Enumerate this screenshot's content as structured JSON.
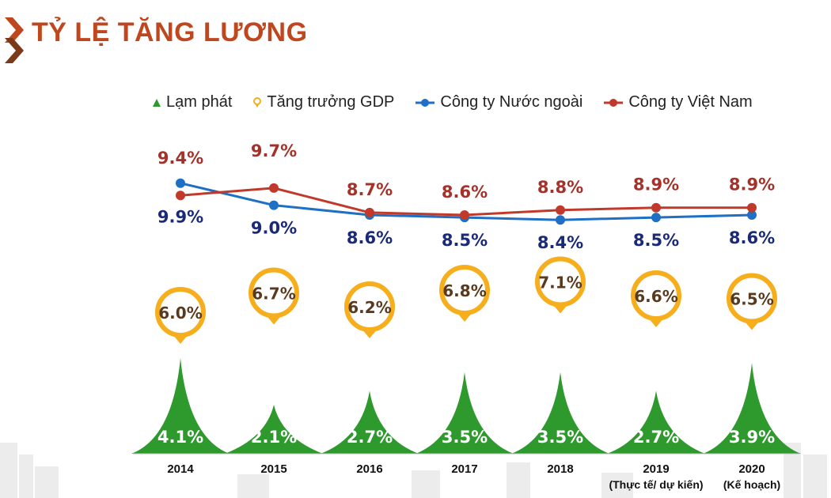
{
  "title": "TỶ LỆ TĂNG LƯƠNG",
  "legend": {
    "inflation": "Lạm phát",
    "gdp": "Tăng trưởng GDP",
    "foreign": "Công ty Nước ngoài",
    "vietnam": "Công ty Việt Nam"
  },
  "colors": {
    "title": "#C0461E",
    "foreign": "#1F6FC4",
    "foreign_label": "#1A2A78",
    "vietnam": "#C0392B",
    "vietnam_label": "#A5322A",
    "gdp": "#F6AE1D",
    "gdp_label": "#5A3A1E",
    "inflation": "#2E9A2E"
  },
  "chart_data": {
    "type": "line",
    "title": "TỶ LỆ TĂNG LƯƠNG",
    "categories": [
      "2014",
      "2015",
      "2016",
      "2017",
      "2018",
      "2019",
      "2020"
    ],
    "category_notes": [
      "",
      "",
      "",
      "",
      "",
      "(Thực tế/ dự kiến)",
      "(Kế hoạch)"
    ],
    "series": [
      {
        "name": "Công ty Nước ngoài",
        "kind": "line",
        "values": [
          9.9,
          9.0,
          8.6,
          8.5,
          8.4,
          8.5,
          8.6
        ],
        "labels": [
          "9.9%",
          "9.0%",
          "8.6%",
          "8.5%",
          "8.4%",
          "8.5%",
          "8.6%"
        ]
      },
      {
        "name": "Công ty Việt Nam",
        "kind": "line",
        "values": [
          9.4,
          9.7,
          8.7,
          8.6,
          8.8,
          8.9,
          8.9
        ],
        "labels": [
          "9.4%",
          "9.7%",
          "8.7%",
          "8.6%",
          "8.8%",
          "8.9%",
          "8.9%"
        ]
      },
      {
        "name": "Tăng trưởng GDP",
        "kind": "pin",
        "values": [
          6.0,
          6.7,
          6.2,
          6.8,
          7.1,
          6.6,
          6.5
        ],
        "labels": [
          "6.0%",
          "6.7%",
          "6.2%",
          "6.8%",
          "7.1%",
          "6.6%",
          "6.5%"
        ]
      },
      {
        "name": "Lạm phát",
        "kind": "peak",
        "values": [
          4.1,
          2.1,
          2.7,
          3.5,
          3.5,
          2.7,
          3.9
        ],
        "labels": [
          "4.1%",
          "2.1%",
          "2.7%",
          "3.5%",
          "3.5%",
          "2.7%",
          "3.9%"
        ]
      }
    ]
  }
}
